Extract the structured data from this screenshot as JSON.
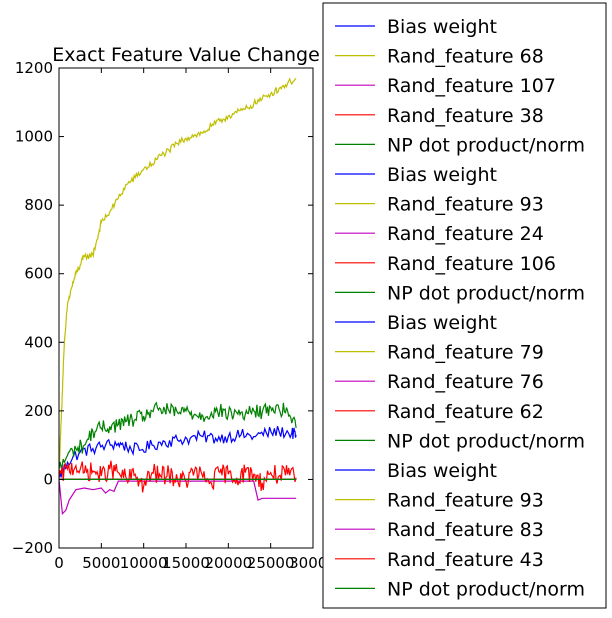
{
  "chart_data": {
    "type": "line",
    "title": "Exact Feature Value Change",
    "xlabel": "",
    "ylabel": "",
    "xlim": [
      0,
      30000
    ],
    "ylim": [
      -200,
      1200
    ],
    "xticks": [
      "0",
      "5000",
      "10000",
      "15000",
      "20000",
      "25000",
      "30000"
    ],
    "yticks": [
      "−200",
      "0",
      "200",
      "400",
      "600",
      "800",
      "1000",
      "1200"
    ],
    "xtick_values": [
      0,
      5000,
      10000,
      15000,
      20000,
      25000,
      30000
    ],
    "ytick_values": [
      -200,
      0,
      200,
      400,
      600,
      800,
      1000,
      1200
    ],
    "grid": false,
    "legend_placement": "outside-right",
    "series": [
      {
        "name": "Bias weight",
        "color": "#0000ff",
        "points": [
          [
            0,
            5
          ],
          [
            1000,
            50
          ],
          [
            2500,
            80
          ],
          [
            4000,
            90
          ],
          [
            5500,
            100
          ],
          [
            7000,
            105
          ],
          [
            8000,
            95
          ],
          [
            9500,
            85
          ],
          [
            11000,
            100
          ],
          [
            12500,
            110
          ],
          [
            14000,
            115
          ],
          [
            15500,
            120
          ],
          [
            17000,
            125
          ],
          [
            18500,
            120
          ],
          [
            20000,
            125
          ],
          [
            21500,
            130
          ],
          [
            23000,
            125
          ],
          [
            24500,
            135
          ],
          [
            26000,
            140
          ],
          [
            27500,
            135
          ],
          [
            28000,
            130
          ]
        ]
      },
      {
        "name": "Rand_feature 68",
        "color": "#bfbf00",
        "points": [
          [
            0,
            20
          ],
          [
            300,
            200
          ],
          [
            600,
            380
          ],
          [
            1000,
            510
          ],
          [
            1500,
            560
          ],
          [
            2000,
            600
          ],
          [
            2500,
            625
          ],
          [
            3000,
            650
          ],
          [
            4000,
            655
          ],
          [
            4500,
            700
          ],
          [
            5000,
            750
          ],
          [
            6000,
            780
          ],
          [
            7000,
            820
          ],
          [
            8000,
            860
          ],
          [
            9000,
            880
          ],
          [
            10000,
            905
          ],
          [
            11000,
            920
          ],
          [
            12000,
            945
          ],
          [
            13000,
            960
          ],
          [
            14000,
            980
          ],
          [
            15000,
            995
          ],
          [
            16000,
            1005
          ],
          [
            17000,
            1010
          ],
          [
            18000,
            1030
          ],
          [
            19000,
            1045
          ],
          [
            20000,
            1060
          ],
          [
            21000,
            1070
          ],
          [
            22000,
            1080
          ],
          [
            23000,
            1095
          ],
          [
            24000,
            1110
          ],
          [
            25000,
            1125
          ],
          [
            26000,
            1140
          ],
          [
            27000,
            1155
          ],
          [
            28000,
            1170
          ]
        ]
      },
      {
        "name": "Rand_feature 107",
        "color": "#bf00bf",
        "points": [
          [
            0,
            0
          ],
          [
            400,
            -100
          ],
          [
            800,
            -90
          ],
          [
            1200,
            -60
          ],
          [
            2000,
            -30
          ],
          [
            3000,
            -25
          ],
          [
            4000,
            -30
          ],
          [
            5000,
            -25
          ],
          [
            5500,
            -40
          ],
          [
            6000,
            -30
          ],
          [
            6500,
            -35
          ],
          [
            7000,
            -5
          ],
          [
            8000,
            -5
          ],
          [
            12000,
            -5
          ],
          [
            16000,
            -5
          ],
          [
            20000,
            -5
          ],
          [
            23000,
            -5
          ],
          [
            23500,
            -60
          ],
          [
            24000,
            -55
          ],
          [
            26000,
            -55
          ],
          [
            28000,
            -55
          ]
        ]
      },
      {
        "name": "Rand_feature 38",
        "color": "#ff0000",
        "points": [
          [
            0,
            5
          ],
          [
            1000,
            30
          ],
          [
            2000,
            40
          ],
          [
            3000,
            20
          ],
          [
            4000,
            25
          ],
          [
            5000,
            10
          ],
          [
            6000,
            30
          ],
          [
            7000,
            20
          ],
          [
            8000,
            0
          ],
          [
            9000,
            15
          ],
          [
            10000,
            -20
          ],
          [
            11000,
            20
          ],
          [
            12000,
            10
          ],
          [
            13000,
            15
          ],
          [
            14000,
            0
          ],
          [
            15000,
            -5
          ],
          [
            16000,
            25
          ],
          [
            17000,
            5
          ],
          [
            18000,
            -10
          ],
          [
            19000,
            20
          ],
          [
            20000,
            15
          ],
          [
            21000,
            5
          ],
          [
            22000,
            20
          ],
          [
            23000,
            15
          ],
          [
            24000,
            -10
          ],
          [
            25000,
            20
          ],
          [
            26000,
            10
          ],
          [
            27000,
            15
          ],
          [
            28000,
            5
          ]
        ]
      },
      {
        "name": "NP dot product/norm",
        "color": "#008000",
        "points": [
          [
            0,
            30
          ],
          [
            1000,
            70
          ],
          [
            2000,
            90
          ],
          [
            3000,
            100
          ],
          [
            4000,
            140
          ],
          [
            5000,
            150
          ],
          [
            6000,
            155
          ],
          [
            7000,
            160
          ],
          [
            8000,
            170
          ],
          [
            9000,
            175
          ],
          [
            10000,
            185
          ],
          [
            11000,
            200
          ],
          [
            12000,
            205
          ],
          [
            13000,
            200
          ],
          [
            14000,
            195
          ],
          [
            15000,
            200
          ],
          [
            16000,
            190
          ],
          [
            17000,
            185
          ],
          [
            18000,
            195
          ],
          [
            19000,
            200
          ],
          [
            20000,
            190
          ],
          [
            21000,
            195
          ],
          [
            22000,
            190
          ],
          [
            23000,
            200
          ],
          [
            24000,
            195
          ],
          [
            25000,
            210
          ],
          [
            26000,
            205
          ],
          [
            27000,
            200
          ],
          [
            28000,
            150
          ]
        ]
      },
      {
        "name": "Bias weight",
        "color": "#0000ff",
        "points": [
          [
            0,
            0
          ],
          [
            28000,
            0
          ]
        ]
      },
      {
        "name": "Rand_feature 93",
        "color": "#bfbf00",
        "points": [
          [
            0,
            0
          ],
          [
            28000,
            0
          ]
        ]
      },
      {
        "name": "Rand_feature 24",
        "color": "#bf00bf",
        "points": [
          [
            0,
            0
          ],
          [
            28000,
            0
          ]
        ]
      },
      {
        "name": "Rand_feature 106",
        "color": "#ff0000",
        "points": [
          [
            0,
            0
          ],
          [
            28000,
            0
          ]
        ]
      },
      {
        "name": "NP dot product/norm",
        "color": "#008000",
        "points": [
          [
            0,
            0
          ],
          [
            28000,
            0
          ]
        ]
      },
      {
        "name": "Bias weight",
        "color": "#0000ff",
        "points": [
          [
            0,
            0
          ],
          [
            28000,
            0
          ]
        ]
      },
      {
        "name": "Rand_feature 79",
        "color": "#bfbf00",
        "points": [
          [
            0,
            0
          ],
          [
            28000,
            0
          ]
        ]
      },
      {
        "name": "Rand_feature 76",
        "color": "#bf00bf",
        "points": [
          [
            0,
            0
          ],
          [
            28000,
            0
          ]
        ]
      },
      {
        "name": "Rand_feature 62",
        "color": "#ff0000",
        "points": [
          [
            0,
            0
          ],
          [
            28000,
            0
          ]
        ]
      },
      {
        "name": "NP dot product/norm",
        "color": "#008000",
        "points": [
          [
            0,
            0
          ],
          [
            28000,
            0
          ]
        ]
      },
      {
        "name": "Bias weight",
        "color": "#0000ff",
        "points": [
          [
            0,
            0
          ],
          [
            28000,
            0
          ]
        ]
      },
      {
        "name": "Rand_feature 93",
        "color": "#bfbf00",
        "points": [
          [
            0,
            0
          ],
          [
            28000,
            0
          ]
        ]
      },
      {
        "name": "Rand_feature 83",
        "color": "#bf00bf",
        "points": [
          [
            0,
            0
          ],
          [
            28000,
            0
          ]
        ]
      },
      {
        "name": "Rand_feature 43",
        "color": "#ff0000",
        "points": [
          [
            0,
            0
          ],
          [
            28000,
            0
          ]
        ]
      },
      {
        "name": "NP dot product/norm",
        "color": "#008000",
        "points": [
          [
            0,
            0
          ],
          [
            28000,
            0
          ]
        ]
      }
    ]
  }
}
